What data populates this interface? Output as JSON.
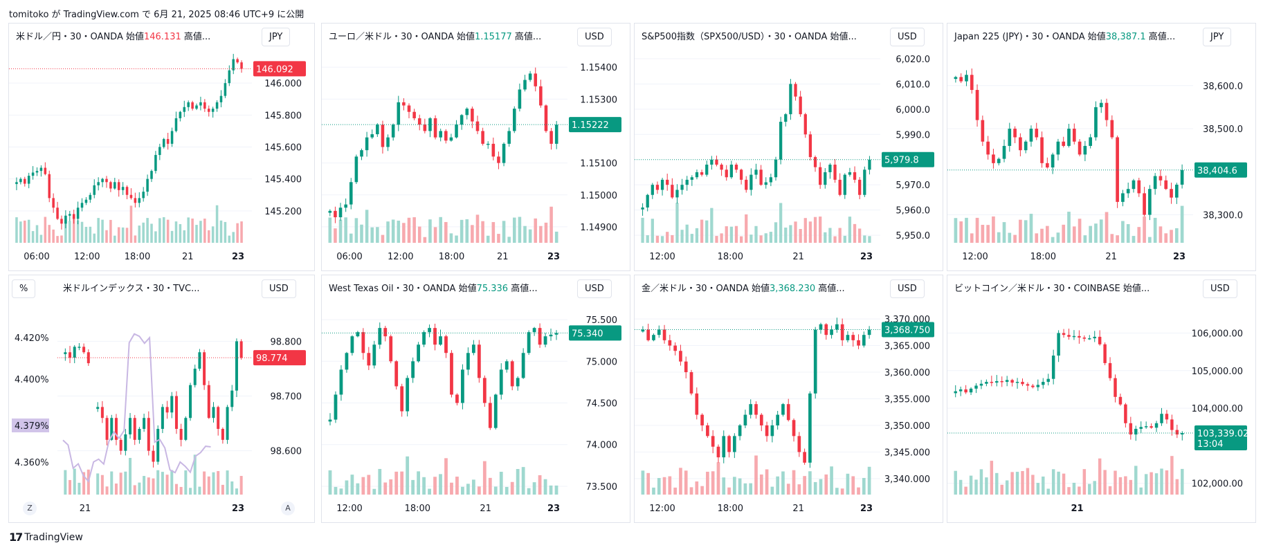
{
  "header": {
    "text": "tomitoko が TradingView.com で 6月 21, 2025 08:46 UTC+9 に公開"
  },
  "footer": {
    "logo": "17",
    "brand": "TradingView"
  },
  "colors": {
    "up": "#089981",
    "down": "#f23645",
    "up_vol": "#9fd8cf",
    "down_vol": "#f7a9ae",
    "grid": "#f0f3fa",
    "text": "#131722",
    "dxy_line": "#c8b7e3"
  },
  "panels": [
    {
      "title_text": "米ドル／円・30・OANDA 始値",
      "open_value": "146.131",
      "open_dir": "dn",
      "rest": " 高値...",
      "currency": "JPY",
      "price_label": "146.092",
      "price_color": "#f23645"
    },
    {
      "title_text": "ユーロ／米ドル・30・OANDA 始値",
      "open_value": "1.15177",
      "open_dir": "up",
      "rest": " 高値...",
      "currency": "USD",
      "price_label": "1.15222",
      "price_color": "#089981"
    },
    {
      "title_text": "S&P500指数（SPX500/USD）・30・OANDA 始値...",
      "open_value": "",
      "open_dir": "up",
      "rest": "",
      "currency": "USD",
      "price_label": "5,979.8",
      "price_color": "#089981"
    },
    {
      "title_text": "Japan 225 (JPY)・30・OANDA 始値",
      "open_value": "38,387.1",
      "open_dir": "up",
      "rest": " 高値...",
      "currency": "JPY",
      "price_label": "38,404.6",
      "price_color": "#089981"
    },
    {
      "title_text": "米ドルインデックス・30・TVC...",
      "open_value": "",
      "open_dir": "up",
      "rest": "",
      "currency": "USD",
      "price_label": "98.774",
      "price_color": "#f23645",
      "pct_btn": "%",
      "left_label": "4.379%",
      "btn_z": "Z",
      "btn_a": "A"
    },
    {
      "title_text": "West Texas Oil・30・OANDA 始値",
      "open_value": "75.336",
      "open_dir": "up",
      "rest": " 高値...",
      "currency": "USD",
      "price_label": "75.340",
      "price_color": "#089981"
    },
    {
      "title_text": "金／米ドル・30・OANDA 始値",
      "open_value": "3,368.230",
      "open_dir": "up",
      "rest": " 高値...",
      "currency": "USD",
      "price_label": "3,368.750",
      "price_color": "#089981"
    },
    {
      "title_text": "ビットコイン／米ドル・30・COINBASE 始値...",
      "open_value": "",
      "open_dir": "up",
      "rest": "",
      "currency": "USD",
      "price_label": "103,339.02",
      "price_label2": "13:04",
      "price_color": "#089981"
    }
  ],
  "chart_data": [
    {
      "type": "candlestick",
      "title": "米ドル／円・30・OANDA",
      "ylim": [
        145.0,
        146.2
      ],
      "ticks": [
        "146.000",
        "145.800",
        "145.600",
        "145.400",
        "145.200"
      ],
      "tick_values": [
        146.0,
        145.8,
        145.6,
        145.4,
        145.2
      ],
      "xticks": [
        "06:00",
        "12:00",
        "18:00",
        "21",
        "23"
      ],
      "closes": [
        145.38,
        145.4,
        145.37,
        145.42,
        145.44,
        145.45,
        145.47,
        145.43,
        145.28,
        145.22,
        145.15,
        145.12,
        145.17,
        145.18,
        145.15,
        145.22,
        145.25,
        145.27,
        145.3,
        145.36,
        145.38,
        145.4,
        145.38,
        145.34,
        145.38,
        145.33,
        145.35,
        145.3,
        145.28,
        145.25,
        145.28,
        145.32,
        145.4,
        145.45,
        145.55,
        145.6,
        145.65,
        145.62,
        145.7,
        145.78,
        145.82,
        145.85,
        145.88,
        145.84,
        145.86,
        145.88,
        145.84,
        145.82,
        145.84,
        145.88,
        145.92,
        146.0,
        146.08,
        146.15,
        146.13,
        146.09
      ]
    },
    {
      "type": "candlestick",
      "title": "ユーロ／米ドル・30・OANDA",
      "ylim": [
        1.1485,
        1.1545
      ],
      "ticks": [
        "1.15400",
        "1.15300",
        "1.15100",
        "1.15000",
        "1.14900"
      ],
      "tick_values": [
        1.154,
        1.153,
        1.151,
        1.15,
        1.149
      ],
      "xticks": [
        "06:00",
        "12:00",
        "18:00",
        "21",
        "23"
      ],
      "closes": [
        1.1495,
        1.1493,
        1.1496,
        1.1497,
        1.1504,
        1.1512,
        1.1514,
        1.1518,
        1.1519,
        1.1522,
        1.1515,
        1.1518,
        1.1522,
        1.1529,
        1.1528,
        1.1526,
        1.1524,
        1.1522,
        1.152,
        1.1524,
        1.1518,
        1.152,
        1.1517,
        1.1518,
        1.1522,
        1.1525,
        1.1527,
        1.1523,
        1.152,
        1.1516,
        1.1516,
        1.1512,
        1.151,
        1.1516,
        1.152,
        1.1527,
        1.1533,
        1.1536,
        1.1538,
        1.1534,
        1.1528,
        1.152,
        1.1516,
        1.1522
      ]
    },
    {
      "type": "candlestick",
      "title": "S&P500指数（SPX500/USD）・30・OANDA",
      "ylim": [
        5947,
        6023
      ],
      "ticks": [
        "6,020.0",
        "6,010.0",
        "6,000.0",
        "5,990.0",
        "5,970.0",
        "5,960.0",
        "5,950.0"
      ],
      "tick_values": [
        6020,
        6010,
        6000,
        5990,
        5970,
        5960,
        5950
      ],
      "xticks": [
        "12:00",
        "18:00",
        "21",
        "23"
      ],
      "closes": [
        5961,
        5966,
        5970,
        5968,
        5972,
        5970,
        5965,
        5968,
        5970,
        5972,
        5973,
        5975,
        5974,
        5978,
        5980,
        5978,
        5976,
        5973,
        5978,
        5976,
        5972,
        5968,
        5974,
        5976,
        5970,
        5971,
        5973,
        5980,
        5995,
        5998,
        6010,
        6005,
        5998,
        5990,
        5981,
        5977,
        5970,
        5975,
        5978,
        5972,
        5966,
        5974,
        5975,
        5972,
        5966,
        5976,
        5980
      ]
    },
    {
      "type": "candlestick",
      "title": "Japan 225 (JPY)・30・OANDA",
      "ylim": [
        38235,
        38680
      ],
      "ticks": [
        "38,600.0",
        "38,500.0",
        "38,300.0"
      ],
      "tick_values": [
        38600,
        38500,
        38300
      ],
      "xticks": [
        "12:00",
        "18:00",
        "21",
        "23"
      ],
      "closes": [
        38620,
        38610,
        38625,
        38590,
        38520,
        38470,
        38440,
        38420,
        38430,
        38460,
        38500,
        38480,
        38450,
        38470,
        38500,
        38480,
        38420,
        38410,
        38440,
        38470,
        38460,
        38500,
        38470,
        38440,
        38460,
        38480,
        38550,
        38560,
        38520,
        38480,
        38330,
        38350,
        38360,
        38380,
        38350,
        38300,
        38360,
        38390,
        38380,
        38360,
        38340,
        38370,
        38404
      ]
    },
    {
      "type": "candlestick",
      "title": "米ドルインデックス・30・TVC",
      "ylim": [
        98.52,
        98.87
      ],
      "ticks": [
        "98.800",
        "98.700",
        "98.600"
      ],
      "tick_values": [
        98.8,
        98.7,
        98.6
      ],
      "xticks": [
        "21",
        "23"
      ],
      "left_ticks": [
        "4.420%",
        "4.400%",
        "4.360%"
      ],
      "left_label": "4.379%",
      "closes": [
        98.78,
        98.77,
        98.79,
        98.79,
        98.78,
        98.76,
        null,
        98.68,
        98.66,
        98.62,
        98.66,
        98.62,
        98.6,
        98.63,
        98.66,
        98.62,
        98.64,
        98.66,
        98.6,
        98.58,
        98.64,
        98.68,
        98.67,
        98.7,
        98.64,
        98.62,
        98.66,
        98.72,
        98.75,
        98.78,
        98.72,
        98.66,
        98.68,
        98.64,
        98.62,
        98.68,
        98.71,
        98.8,
        98.77
      ]
    },
    {
      "type": "candlestick",
      "title": "West Texas Oil・30・OANDA",
      "ylim": [
        73.4,
        75.7
      ],
      "ticks": [
        "75.500",
        "75.000",
        "74.500",
        "74.000",
        "73.500"
      ],
      "tick_values": [
        75.5,
        75.0,
        74.5,
        74.0,
        73.5
      ],
      "xticks": [
        "12:00",
        "18:00",
        "21",
        "23"
      ],
      "closes": [
        74.3,
        74.6,
        74.9,
        75.1,
        75.3,
        75.35,
        75.1,
        74.95,
        75.2,
        75.4,
        75.3,
        75.0,
        74.7,
        74.4,
        74.8,
        75.0,
        75.2,
        75.35,
        75.4,
        75.2,
        75.3,
        75.1,
        74.6,
        74.5,
        74.9,
        75.1,
        75.2,
        74.8,
        74.5,
        74.2,
        74.6,
        74.9,
        75.0,
        74.7,
        74.8,
        75.1,
        75.35,
        75.4,
        75.2,
        75.3,
        75.32,
        75.34
      ]
    },
    {
      "type": "candlestick",
      "title": "金／米ドル・30・OANDA",
      "ylim": [
        3337,
        3373
      ],
      "ticks": [
        "3,370.000",
        "3,365.000",
        "3,360.000",
        "3,355.000",
        "3,350.000",
        "3,345.000",
        "3,340.000"
      ],
      "tick_values": [
        3370,
        3365,
        3360,
        3355,
        3350,
        3345,
        3340
      ],
      "xticks": [
        "12:00",
        "18:00",
        "21",
        "23"
      ],
      "closes": [
        3368,
        3366,
        3367,
        3368,
        3366,
        3365,
        3364,
        3362,
        3360,
        3356,
        3352,
        3350,
        3348,
        3346,
        3344,
        3348,
        3345,
        3348,
        3350,
        3352,
        3354,
        3352,
        3350,
        3348,
        3350,
        3352,
        3354,
        3351,
        3348,
        3345,
        3343,
        3356,
        3368,
        3369,
        3367,
        3368,
        3369,
        3366,
        3367,
        3366,
        3365,
        3367,
        3368
      ]
    },
    {
      "type": "candlestick",
      "title": "ビットコイン／米ドル・30・COINBASE",
      "ylim": [
        101700,
        106800
      ],
      "ticks": [
        "106,000.00",
        "105,000.00",
        "104,000.00",
        "102,000.00"
      ],
      "tick_values": [
        106000,
        105000,
        104000,
        102000
      ],
      "xticks": [
        "21"
      ],
      "closes": [
        104450,
        104500,
        104420,
        104520,
        104600,
        104650,
        104700,
        104680,
        104720,
        104700,
        104750,
        104680,
        104700,
        104640,
        104600,
        104560,
        104620,
        104700,
        104780,
        105400,
        106000,
        105950,
        105900,
        105920,
        105880,
        105850,
        105860,
        105900,
        105700,
        105200,
        104800,
        104300,
        104100,
        103600,
        103300,
        103450,
        103500,
        103520,
        103480,
        103600,
        103850,
        103700,
        103420,
        103300,
        103339
      ]
    }
  ]
}
